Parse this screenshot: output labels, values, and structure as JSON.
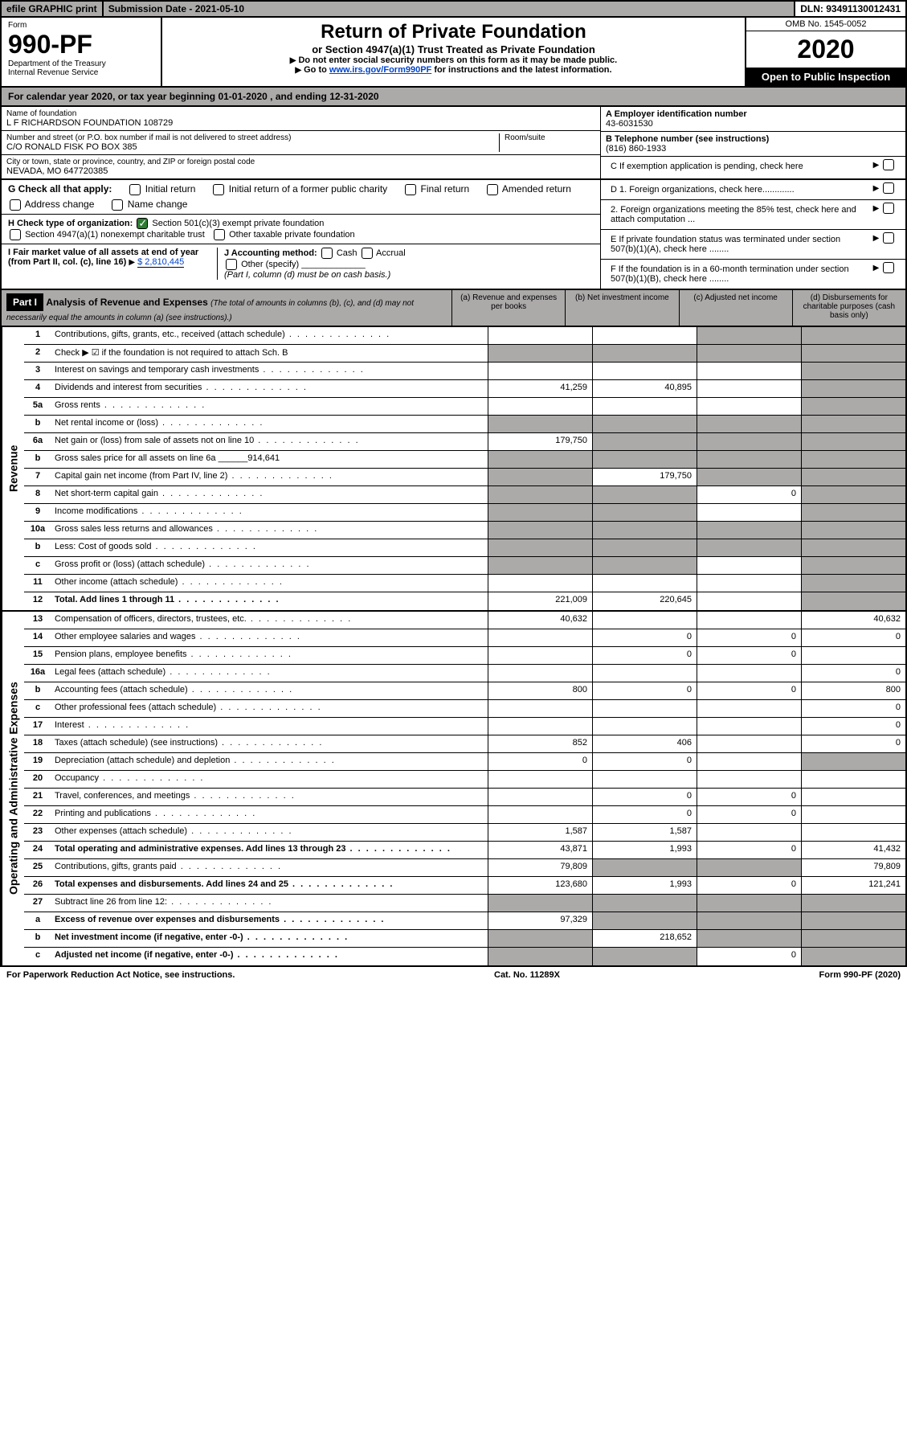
{
  "topbar": {
    "efile": "efile GRAPHIC print",
    "subdate": "Submission Date - 2021-05-10",
    "dln": "DLN: 93491130012431"
  },
  "header": {
    "form_label": "Form",
    "form_number": "990-PF",
    "dept": "Department of the Treasury",
    "irs": "Internal Revenue Service",
    "title": "Return of Private Foundation",
    "subtitle": "or Section 4947(a)(1) Trust Treated as Private Foundation",
    "instr1": "Do not enter social security numbers on this form as it may be made public.",
    "instr2_pre": "Go to ",
    "instr2_link": "www.irs.gov/Form990PF",
    "instr2_post": " for instructions and the latest information.",
    "omb": "OMB No. 1545-0052",
    "year": "2020",
    "open": "Open to Public Inspection"
  },
  "cal": {
    "text_pre": "For calendar year 2020, or tax year beginning ",
    "begin": "01-01-2020",
    "mid": " , and ending ",
    "end": "12-31-2020"
  },
  "info": {
    "name_label": "Name of foundation",
    "name": "L F RICHARDSON FOUNDATION 108729",
    "addr_label": "Number and street (or P.O. box number if mail is not delivered to street address)",
    "addr": "C/O RONALD FISK PO BOX 385",
    "room_label": "Room/suite",
    "city_label": "City or town, state or province, country, and ZIP or foreign postal code",
    "city": "NEVADA, MO  647720385",
    "a_label": "A Employer identification number",
    "a_val": "43-6031530",
    "b_label": "B Telephone number (see instructions)",
    "b_val": "(816) 860-1933",
    "c_label": "C If exemption application is pending, check here",
    "d1": "D 1. Foreign organizations, check here.............",
    "d2": "2. Foreign organizations meeting the 85% test, check here and attach computation ...",
    "e": "E If private foundation status was terminated under section 507(b)(1)(A), check here ........",
    "f": "F If the foundation is in a 60-month termination under section 507(b)(1)(B), check here ........"
  },
  "g": {
    "label": "G Check all that apply:",
    "initial": "Initial return",
    "initial_former": "Initial return of a former public charity",
    "final": "Final return",
    "amended": "Amended return",
    "addr_change": "Address change",
    "name_change": "Name change"
  },
  "h": {
    "label": "H Check type of organization:",
    "501c3": "Section 501(c)(3) exempt private foundation",
    "4947": "Section 4947(a)(1) nonexempt charitable trust",
    "other_tax": "Other taxable private foundation"
  },
  "i": {
    "label": "I Fair market value of all assets at end of year (from Part II, col. (c), line 16)",
    "val": "$  2,810,445",
    "j_label": "J Accounting method:",
    "cash": "Cash",
    "accrual": "Accrual",
    "other": "Other (specify)",
    "note": "(Part I, column (d) must be on cash basis.)"
  },
  "part1": {
    "tag": "Part I",
    "title": "Analysis of Revenue and Expenses",
    "sub": "(The total of amounts in columns (b), (c), and (d) may not necessarily equal the amounts in column (a) (see instructions).)",
    "col_a": "(a) Revenue and expenses per books",
    "col_b": "(b) Net investment income",
    "col_c": "(c) Adjusted net income",
    "col_d": "(d) Disbursements for charitable purposes (cash basis only)"
  },
  "sections": {
    "revenue": "Revenue",
    "expenses": "Operating and Administrative Expenses"
  },
  "rows": [
    {
      "n": "1",
      "label": "Contributions, gifts, grants, etc., received (attach schedule)",
      "a": "",
      "b": "",
      "c": "g",
      "d": "g"
    },
    {
      "n": "2",
      "label": "Check ▶ ☑ if the foundation is not required to attach Sch. B",
      "a": "g",
      "b": "g",
      "c": "g",
      "d": "g",
      "nodots": true
    },
    {
      "n": "3",
      "label": "Interest on savings and temporary cash investments",
      "a": "",
      "b": "",
      "c": "",
      "d": "g"
    },
    {
      "n": "4",
      "label": "Dividends and interest from securities",
      "a": "41,259",
      "b": "40,895",
      "c": "",
      "d": "g"
    },
    {
      "n": "5a",
      "label": "Gross rents",
      "a": "",
      "b": "",
      "c": "",
      "d": "g"
    },
    {
      "n": "b",
      "label": "Net rental income or (loss)",
      "a": "g",
      "b": "g",
      "c": "g",
      "d": "g"
    },
    {
      "n": "6a",
      "label": "Net gain or (loss) from sale of assets not on line 10",
      "a": "179,750",
      "b": "g",
      "c": "g",
      "d": "g"
    },
    {
      "n": "b",
      "label": "Gross sales price for all assets on line 6a ______914,641",
      "a": "g",
      "b": "g",
      "c": "g",
      "d": "g",
      "nodots": true
    },
    {
      "n": "7",
      "label": "Capital gain net income (from Part IV, line 2)",
      "a": "g",
      "b": "179,750",
      "c": "g",
      "d": "g"
    },
    {
      "n": "8",
      "label": "Net short-term capital gain",
      "a": "g",
      "b": "g",
      "c": "0",
      "d": "g"
    },
    {
      "n": "9",
      "label": "Income modifications",
      "a": "g",
      "b": "g",
      "c": "",
      "d": "g"
    },
    {
      "n": "10a",
      "label": "Gross sales less returns and allowances",
      "a": "g",
      "b": "g",
      "c": "g",
      "d": "g"
    },
    {
      "n": "b",
      "label": "Less: Cost of goods sold",
      "a": "g",
      "b": "g",
      "c": "g",
      "d": "g"
    },
    {
      "n": "c",
      "label": "Gross profit or (loss) (attach schedule)",
      "a": "g",
      "b": "g",
      "c": "",
      "d": "g"
    },
    {
      "n": "11",
      "label": "Other income (attach schedule)",
      "a": "",
      "b": "",
      "c": "",
      "d": "g"
    },
    {
      "n": "12",
      "label": "Total. Add lines 1 through 11",
      "a": "221,009",
      "b": "220,645",
      "c": "",
      "d": "g",
      "bold": true
    }
  ],
  "rows2": [
    {
      "n": "13",
      "label": "Compensation of officers, directors, trustees, etc.",
      "a": "40,632",
      "b": "",
      "c": "",
      "d": "40,632"
    },
    {
      "n": "14",
      "label": "Other employee salaries and wages",
      "a": "",
      "b": "0",
      "c": "0",
      "d": "0"
    },
    {
      "n": "15",
      "label": "Pension plans, employee benefits",
      "a": "",
      "b": "0",
      "c": "0",
      "d": ""
    },
    {
      "n": "16a",
      "label": "Legal fees (attach schedule)",
      "a": "",
      "b": "",
      "c": "",
      "d": "0"
    },
    {
      "n": "b",
      "label": "Accounting fees (attach schedule)",
      "a": "800",
      "b": "0",
      "c": "0",
      "d": "800"
    },
    {
      "n": "c",
      "label": "Other professional fees (attach schedule)",
      "a": "",
      "b": "",
      "c": "",
      "d": "0"
    },
    {
      "n": "17",
      "label": "Interest",
      "a": "",
      "b": "",
      "c": "",
      "d": "0"
    },
    {
      "n": "18",
      "label": "Taxes (attach schedule) (see instructions)",
      "a": "852",
      "b": "406",
      "c": "",
      "d": "0"
    },
    {
      "n": "19",
      "label": "Depreciation (attach schedule) and depletion",
      "a": "0",
      "b": "0",
      "c": "",
      "d": "g"
    },
    {
      "n": "20",
      "label": "Occupancy",
      "a": "",
      "b": "",
      "c": "",
      "d": ""
    },
    {
      "n": "21",
      "label": "Travel, conferences, and meetings",
      "a": "",
      "b": "0",
      "c": "0",
      "d": ""
    },
    {
      "n": "22",
      "label": "Printing and publications",
      "a": "",
      "b": "0",
      "c": "0",
      "d": ""
    },
    {
      "n": "23",
      "label": "Other expenses (attach schedule)",
      "a": "1,587",
      "b": "1,587",
      "c": "",
      "d": ""
    },
    {
      "n": "24",
      "label": "Total operating and administrative expenses. Add lines 13 through 23",
      "a": "43,871",
      "b": "1,993",
      "c": "0",
      "d": "41,432",
      "bold": true
    },
    {
      "n": "25",
      "label": "Contributions, gifts, grants paid",
      "a": "79,809",
      "b": "g",
      "c": "g",
      "d": "79,809"
    },
    {
      "n": "26",
      "label": "Total expenses and disbursements. Add lines 24 and 25",
      "a": "123,680",
      "b": "1,993",
      "c": "0",
      "d": "121,241",
      "bold": true
    },
    {
      "n": "27",
      "label": "Subtract line 26 from line 12:",
      "a": "g",
      "b": "g",
      "c": "g",
      "d": "g"
    },
    {
      "n": "a",
      "label": "Excess of revenue over expenses and disbursements",
      "a": "97,329",
      "b": "g",
      "c": "g",
      "d": "g",
      "bold": true
    },
    {
      "n": "b",
      "label": "Net investment income (if negative, enter -0-)",
      "a": "g",
      "b": "218,652",
      "c": "g",
      "d": "g",
      "bold": true
    },
    {
      "n": "c",
      "label": "Adjusted net income (if negative, enter -0-)",
      "a": "g",
      "b": "g",
      "c": "0",
      "d": "g",
      "bold": true
    }
  ],
  "footer": {
    "left": "For Paperwork Reduction Act Notice, see instructions.",
    "mid": "Cat. No. 11289X",
    "right": "Form 990-PF (2020)"
  }
}
